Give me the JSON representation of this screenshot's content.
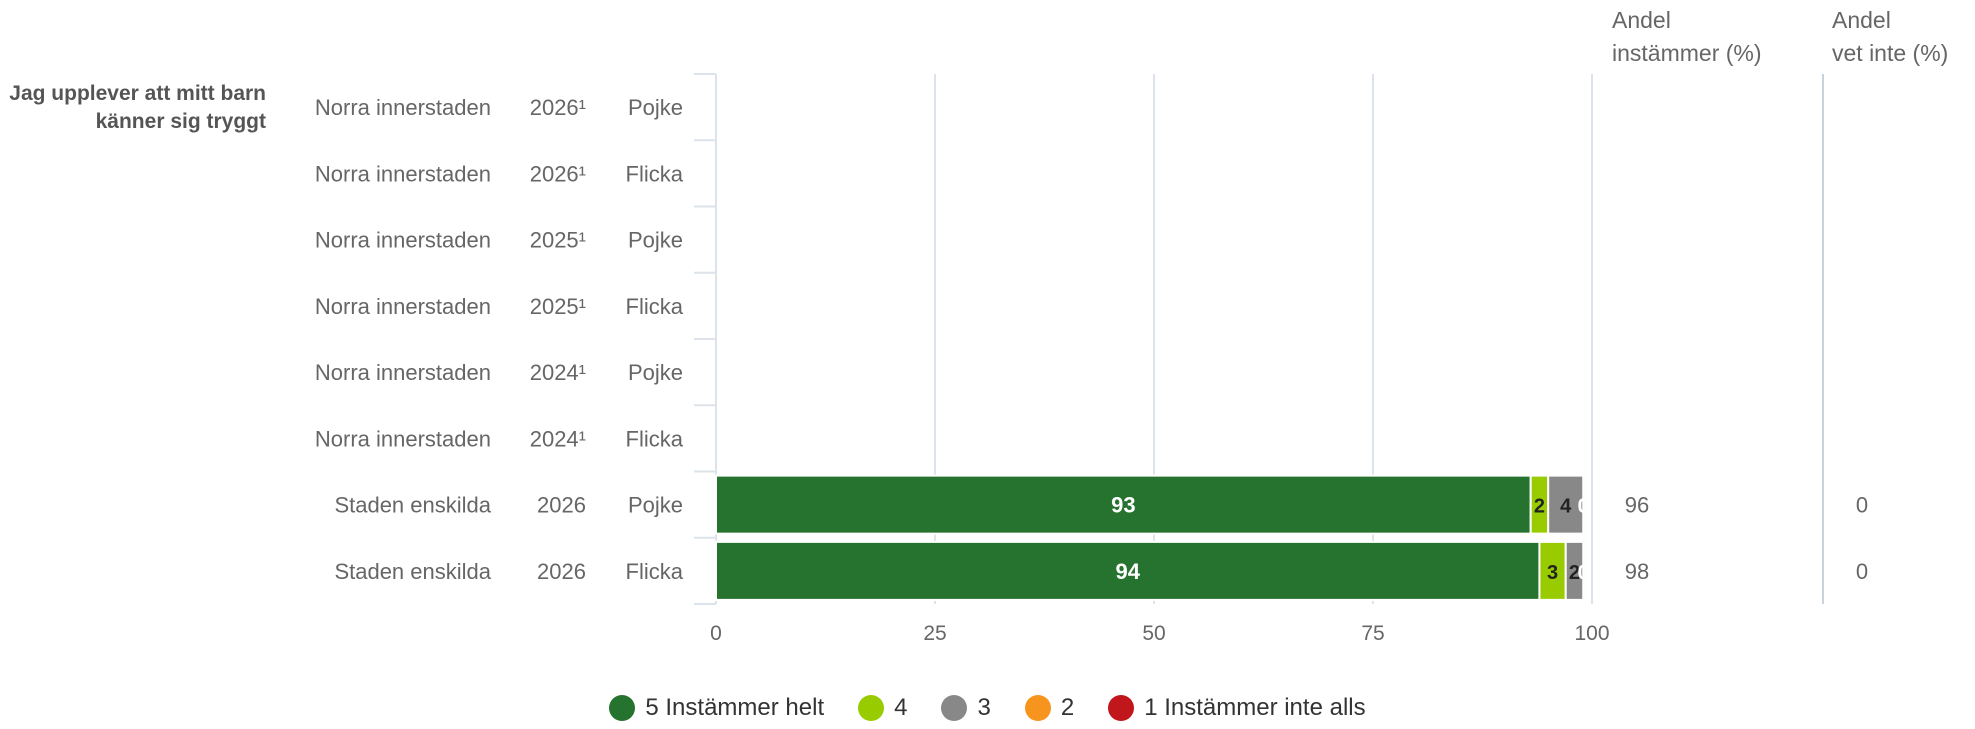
{
  "chart_data": {
    "type": "bar",
    "orientation": "horizontal",
    "stacked": true,
    "question": "Jag upplever att mitt barn känner sig tryggt",
    "rows": [
      {
        "area": "Norra innerstaden",
        "year": "2026¹",
        "gender": "Pojke",
        "values": [
          null,
          null,
          null,
          null,
          null
        ],
        "andel_instammer": "",
        "andel_vet_inte": ""
      },
      {
        "area": "Norra innerstaden",
        "year": "2026¹",
        "gender": "Flicka",
        "values": [
          null,
          null,
          null,
          null,
          null
        ],
        "andel_instammer": "",
        "andel_vet_inte": ""
      },
      {
        "area": "Norra innerstaden",
        "year": "2025¹",
        "gender": "Pojke",
        "values": [
          null,
          null,
          null,
          null,
          null
        ],
        "andel_instammer": "",
        "andel_vet_inte": ""
      },
      {
        "area": "Norra innerstaden",
        "year": "2025¹",
        "gender": "Flicka",
        "values": [
          null,
          null,
          null,
          null,
          null
        ],
        "andel_instammer": "",
        "andel_vet_inte": ""
      },
      {
        "area": "Norra innerstaden",
        "year": "2024¹",
        "gender": "Pojke",
        "values": [
          null,
          null,
          null,
          null,
          null
        ],
        "andel_instammer": "",
        "andel_vet_inte": ""
      },
      {
        "area": "Norra innerstaden",
        "year": "2024¹",
        "gender": "Flicka",
        "values": [
          null,
          null,
          null,
          null,
          null
        ],
        "andel_instammer": "",
        "andel_vet_inte": ""
      },
      {
        "area": "Staden enskilda",
        "year": "2026",
        "gender": "Pojke",
        "values": [
          93,
          2,
          4,
          0,
          0
        ],
        "andel_instammer": "96",
        "andel_vet_inte": "0"
      },
      {
        "area": "Staden enskilda",
        "year": "2026",
        "gender": "Flicka",
        "values": [
          94,
          3,
          2,
          0,
          0
        ],
        "andel_instammer": "98",
        "andel_vet_inte": "0"
      }
    ],
    "series": [
      {
        "name": "5 Instämmer helt",
        "color": "#26722f",
        "label_color": "#ffffff"
      },
      {
        "name": "4",
        "color": "#99cc00",
        "label_color": "#222222"
      },
      {
        "name": "3",
        "color": "#888888",
        "label_color": "#222222"
      },
      {
        "name": "2",
        "color": "#f7941d",
        "label_color": "#222222"
      },
      {
        "name": "1 Instämmer inte alls",
        "color": "#c0161c",
        "label_color": "#ffffff"
      }
    ],
    "x_ticks": [
      "0",
      "25",
      "50",
      "75",
      "100"
    ],
    "xlim": [
      0,
      100
    ],
    "col_headers": {
      "instammer": [
        "Andel",
        "instämmer (%)"
      ],
      "vet_inte": [
        "Andel",
        "vet inte (%)"
      ]
    },
    "grid": true,
    "legend_position": "bottom"
  }
}
